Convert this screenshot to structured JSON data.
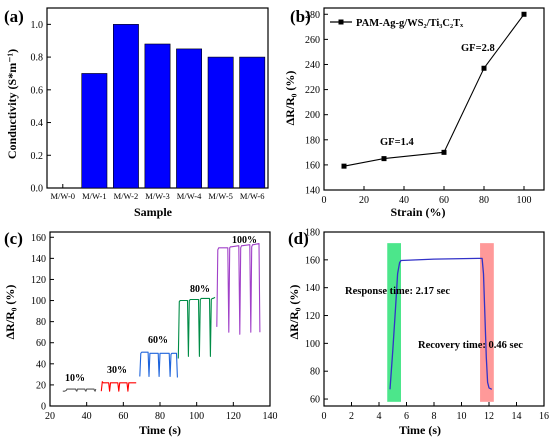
{
  "colors": {
    "bar": "#0000FF",
    "axis": "#000000",
    "line_b": "#000000",
    "c_10": "#555555",
    "c_30": "#FF0000",
    "c_60": "#1E64DC",
    "c_80": "#008C46",
    "c_100": "#A040C8",
    "d_trace": "#3232C8",
    "d_response_band": "#00DC5A",
    "d_recovery_band": "#FF6E6E"
  },
  "chart_data": [
    {
      "panel": "a",
      "panel_label": "(a)",
      "type": "bar",
      "xlabel": "Sample",
      "ylabel": "Conductivity (S*m⁻¹)",
      "categories": [
        "M/W-0",
        "M/W-1",
        "M/W-2",
        "M/W-3",
        "M/W-4",
        "M/W-5",
        "M/W-6"
      ],
      "values": [
        0.0,
        0.7,
        1.0,
        0.88,
        0.85,
        0.8,
        0.8
      ],
      "ylim": [
        0,
        1.1
      ],
      "yticks": [
        "0.0",
        "0.2",
        "0.4",
        "0.6",
        "0.8",
        "1.0"
      ],
      "grid": false
    },
    {
      "panel": "b",
      "panel_label": "(b)",
      "type": "line",
      "xlabel": "Strain (%)",
      "ylabel": "ΔR/R₀ (%)",
      "legend": "PAM-Ag-g/WS₂/Ti₃C₂Tₓ",
      "legend_position": "top-left",
      "series": [
        {
          "name": "PAM-Ag-g/WS₂/Ti₃C₂Tₓ",
          "x": [
            10,
            30,
            60,
            80,
            100
          ],
          "y": [
            159,
            165,
            170,
            237,
            280
          ]
        }
      ],
      "xlim": [
        0,
        110
      ],
      "ylim": [
        140,
        285
      ],
      "xticks": [
        "0",
        "20",
        "40",
        "60",
        "80",
        "100"
      ],
      "yticks": [
        "140",
        "160",
        "180",
        "200",
        "220",
        "240",
        "260",
        "280"
      ],
      "annotations": [
        "GF=1.4",
        "GF=2.8"
      ],
      "grid": false
    },
    {
      "panel": "c",
      "panel_label": "(c)",
      "type": "line",
      "xlabel": "Time (s)",
      "ylabel": "ΔR/R₀ (%)",
      "series": [
        {
          "name": "10%",
          "x": [
            27,
            28,
            29,
            29.2,
            29.6,
            30,
            31,
            32,
            34,
            34.2,
            34.6,
            35,
            36,
            37,
            39,
            39.2,
            39.6,
            40,
            41,
            42,
            44,
            44.2,
            44.6,
            45
          ],
          "y": [
            14,
            14,
            15,
            16,
            16,
            16,
            16,
            16,
            16,
            15,
            14,
            16,
            16,
            16,
            16,
            15,
            14,
            16,
            16,
            16,
            16,
            15,
            14,
            16
          ]
        },
        {
          "name": "30%",
          "x": [
            48,
            48.5,
            49,
            52,
            52.5,
            53,
            53.5,
            54,
            57,
            57.5,
            58,
            58.5,
            59,
            62,
            62.5,
            63,
            63.5,
            64,
            67
          ],
          "y": [
            14,
            23,
            22,
            22,
            14,
            22,
            22,
            22,
            22,
            14,
            22,
            22,
            22,
            22,
            14,
            22,
            22,
            22,
            22
          ]
        },
        {
          "name": "60%",
          "x": [
            69,
            69.5,
            70,
            73.5,
            74,
            74.5,
            75,
            79,
            79.5,
            80,
            80.5,
            81,
            85,
            85.5,
            86,
            86.5,
            87,
            89,
            89.5
          ],
          "y": [
            28,
            50,
            51,
            51,
            28,
            50,
            50,
            50,
            28,
            50,
            50,
            50,
            50,
            28,
            49,
            50,
            50,
            50,
            27
          ]
        },
        {
          "name": "80%",
          "x": [
            90,
            90.5,
            91,
            95,
            95.5,
            96,
            96.5,
            97,
            101,
            101.5,
            102,
            102.5,
            103,
            107,
            107.5,
            108,
            108.5,
            109,
            110
          ],
          "y": [
            45,
            99,
            100,
            100,
            47,
            100,
            101,
            101,
            101,
            47,
            101,
            102,
            102,
            102,
            47,
            101,
            102,
            102,
            103
          ]
        },
        {
          "name": "100%",
          "x": [
            111,
            111.5,
            112,
            117,
            117.5,
            118,
            118.5,
            119,
            123,
            123.5,
            124,
            124.5,
            125,
            129,
            129.5,
            130,
            130.5,
            131,
            134,
            134.5
          ],
          "y": [
            75,
            148,
            150,
            150,
            70,
            150,
            151,
            151,
            152,
            68,
            150,
            152,
            152,
            153,
            70,
            151,
            153,
            153,
            154,
            70
          ]
        }
      ],
      "xlim": [
        20,
        140
      ],
      "ylim": [
        0,
        165
      ],
      "xticks": [
        "20",
        "40",
        "60",
        "80",
        "100",
        "120",
        "140"
      ],
      "yticks": [
        "0",
        "20",
        "40",
        "60",
        "80",
        "100",
        "120",
        "140",
        "160"
      ],
      "labels": [
        "10%",
        "30%",
        "60%",
        "80%",
        "100%"
      ],
      "grid": false
    },
    {
      "panel": "d",
      "panel_label": "(d)",
      "type": "line",
      "xlabel": "Time (s)",
      "ylabel": "ΔR/R₀ (%)",
      "series": [
        {
          "name": "",
          "x": [
            4.8,
            5.0,
            5.2,
            5.35,
            5.5,
            5.6,
            8,
            11.2,
            11.5,
            11.6,
            11.7,
            11.8,
            11.9,
            12.0,
            12.2
          ],
          "y": [
            67,
            95,
            125,
            150,
            158,
            159.5,
            160.5,
            161,
            161,
            150,
            120,
            90,
            72,
            68,
            67
          ]
        }
      ],
      "bands": [
        {
          "name": "response",
          "x": [
            4.6,
            5.6
          ]
        },
        {
          "name": "recovery",
          "x": [
            11.35,
            12.35
          ]
        }
      ],
      "xlim": [
        0,
        16
      ],
      "ylim": [
        55,
        180
      ],
      "xticks": [
        "0",
        "2",
        "4",
        "6",
        "8",
        "10",
        "12",
        "14",
        "16"
      ],
      "yticks": [
        "60",
        "80",
        "100",
        "120",
        "140",
        "160",
        "180"
      ],
      "annotations": [
        "Response time: 2.17 sec",
        "Recovery time: 0.46 sec"
      ],
      "grid": false
    }
  ]
}
